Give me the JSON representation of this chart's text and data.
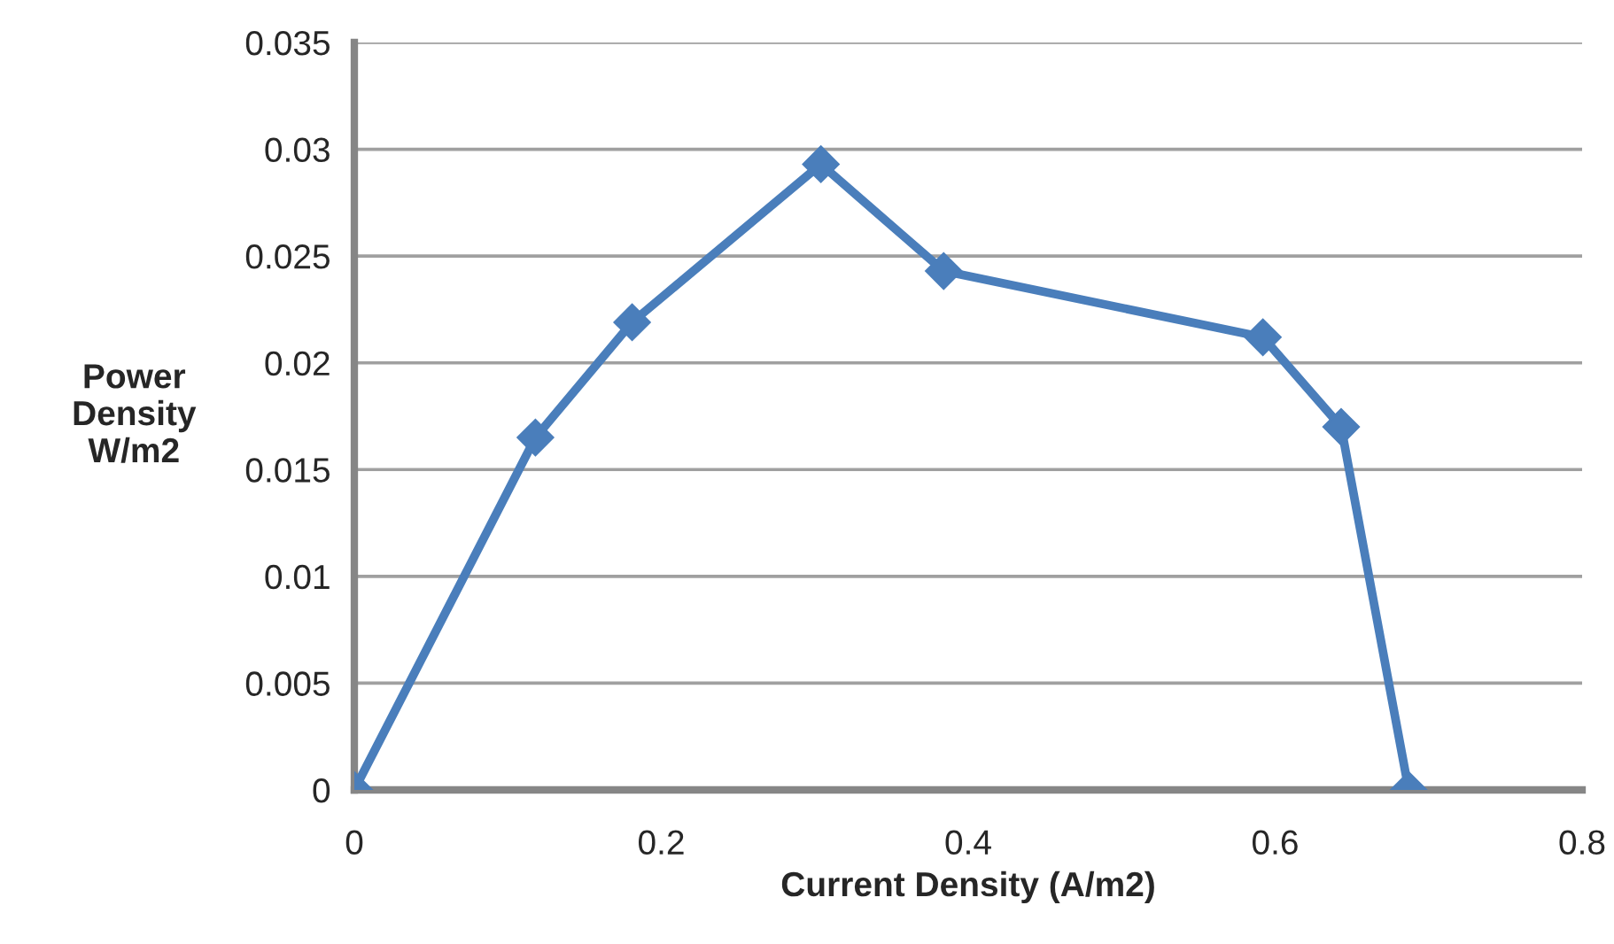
{
  "chart_data": {
    "type": "line",
    "xlabel": "Current Density (A/m2)",
    "ylabel": "Power\nDensity\nW/m2",
    "series": [
      {
        "color": "#4a7ebb",
        "x": [
          0,
          0.118,
          0.181,
          0.304,
          0.384,
          0.592,
          0.643,
          0.687
        ],
        "values": [
          0,
          0.0165,
          0.0219,
          0.0293,
          0.0243,
          0.0212,
          0.017,
          0
        ]
      }
    ],
    "xlim": [
      0,
      0.8
    ],
    "xticks": [
      0,
      0.2,
      0.4,
      0.6,
      0.8
    ],
    "ylim": [
      0,
      0.035
    ],
    "yticks": [
      0,
      0.005,
      0.01,
      0.015,
      0.02,
      0.025,
      0.03,
      0.035
    ],
    "grid": "y",
    "marker": "diamond",
    "line_style": "solid",
    "legend": false
  }
}
